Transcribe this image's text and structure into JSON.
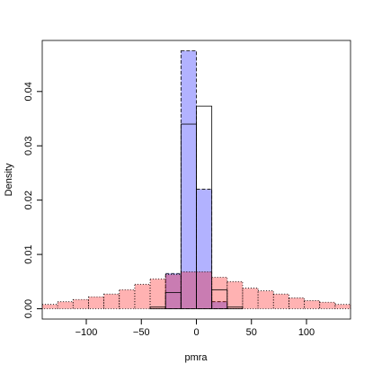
{
  "chart_data": {
    "type": "histogram",
    "x_label": "pmra",
    "y_label": "Density",
    "bins": [
      -140,
      -126,
      -112,
      -98,
      -84,
      -70,
      -56,
      -42,
      -28,
      -14,
      0,
      14,
      28,
      42,
      56,
      70,
      84,
      98,
      112,
      126,
      140
    ],
    "series": [
      {
        "color": "rgba(0,0,255,0.3)",
        "filled": true,
        "line_style": "dashed",
        "values": [
          0,
          0,
          0,
          0,
          0,
          0,
          0,
          0,
          0.0065,
          0.0475,
          0.022,
          0.0013,
          0,
          0,
          0,
          0,
          0,
          0,
          0,
          0
        ]
      },
      {
        "color": "rgba(255,0,0,0.3)",
        "filled": true,
        "line_style": "dotted",
        "values": [
          0.0008,
          0.0013,
          0.0017,
          0.0022,
          0.0027,
          0.0035,
          0.0045,
          0.0055,
          0.0063,
          0.0068,
          0.0068,
          0.0058,
          0.005,
          0.0038,
          0.0033,
          0.0027,
          0.002,
          0.0015,
          0.0012,
          0.0008
        ]
      },
      {
        "color": "#000000",
        "filled": false,
        "line_style": "solid",
        "values": [
          0,
          0,
          0,
          0,
          0,
          0,
          0,
          0.0003,
          0.003,
          0.034,
          0.0373,
          0.0035,
          0.0003,
          0,
          0,
          0,
          0,
          0,
          0,
          0
        ]
      }
    ],
    "xlim": [
      -140,
      140
    ],
    "ylim": [
      -0.0019,
      0.0494
    ],
    "xticks": [
      {
        "value": -100,
        "label": "−100"
      },
      {
        "value": -50,
        "label": "−50"
      },
      0,
      50,
      100
    ],
    "yticks": [
      {
        "value": 0,
        "label": "0.00"
      },
      {
        "value": 0.01,
        "label": "0.01"
      },
      {
        "value": 0.02,
        "label": "0.02"
      },
      {
        "value": 0.03,
        "label": "0.03"
      },
      {
        "value": 0.04,
        "label": "0.04"
      }
    ]
  }
}
